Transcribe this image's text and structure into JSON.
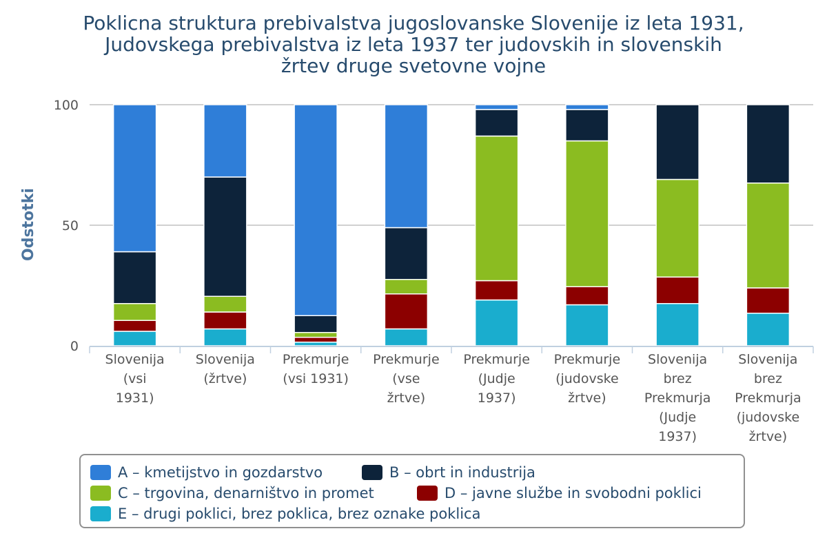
{
  "chart_data": {
    "type": "bar",
    "stacked": true,
    "title_lines": [
      "Poklicna struktura prebivalstva jugoslovanske Slovenije iz leta 1931,",
      "Judovskega prebivalstva iz leta 1937 ter judovskih in slovenskih",
      "žrtev druge svetovne vojne"
    ],
    "ylabel": "Odstotki",
    "ylim": [
      0,
      100
    ],
    "yticks": [
      0,
      50,
      100
    ],
    "grid": true,
    "legend_position": "bottom",
    "categories": [
      [
        "Slovenija",
        "(vsi",
        "1931)"
      ],
      [
        "Slovenija",
        "(žrtve)"
      ],
      [
        "Prekmurje",
        "(vsi 1931)"
      ],
      [
        "Prekmurje",
        "(vse",
        "žrtve)"
      ],
      [
        "Prekmurje",
        "(Judje",
        "1937)"
      ],
      [
        "Prekmurje",
        "(judovske",
        "žrtve)"
      ],
      [
        "Slovenija",
        "brez",
        "Prekmurja",
        "(Judje",
        "1937)"
      ],
      [
        "Slovenija",
        "brez",
        "Prekmurja",
        "(judovske",
        "žrtve)"
      ]
    ],
    "series": [
      {
        "name": "E – drugi poklici, brez poklica, brez oznake poklica",
        "color": "#1aadce",
        "values": [
          6,
          7,
          1.5,
          7,
          19,
          17,
          17.5,
          13.5
        ]
      },
      {
        "name": "D – javne službe in svobodni poklici",
        "color": "#8c0000",
        "values": [
          4.5,
          7,
          2,
          14.5,
          8,
          7.5,
          11,
          10.5
        ]
      },
      {
        "name": "C – trgovina, denarništvo in promet",
        "color": "#8bbc21",
        "values": [
          7,
          6.5,
          2,
          6,
          60,
          60.5,
          40.5,
          43.5
        ]
      },
      {
        "name": "B – obrt in industrija",
        "color": "#0d233a",
        "values": [
          21.5,
          49.5,
          7,
          21.5,
          11,
          13,
          31,
          32.5
        ]
      },
      {
        "name": "A – kmetijstvo in gozdarstvo",
        "color": "#2f7ed8",
        "values": [
          61,
          30,
          87.5,
          51,
          2,
          2,
          0,
          0
        ]
      }
    ]
  },
  "legend": {
    "items": [
      {
        "label": "A – kmetijstvo in gozdarstvo",
        "color": "#2f7ed8"
      },
      {
        "label": "B – obrt in industrija",
        "color": "#0d233a"
      },
      {
        "label": "C – trgovina, denarništvo in promet",
        "color": "#8bbc21"
      },
      {
        "label": "D – javne službe in svobodni poklici",
        "color": "#8c0000"
      },
      {
        "label": "E – drugi poklici, brez poklica, brez oznake poklica",
        "color": "#1aadce"
      }
    ]
  }
}
